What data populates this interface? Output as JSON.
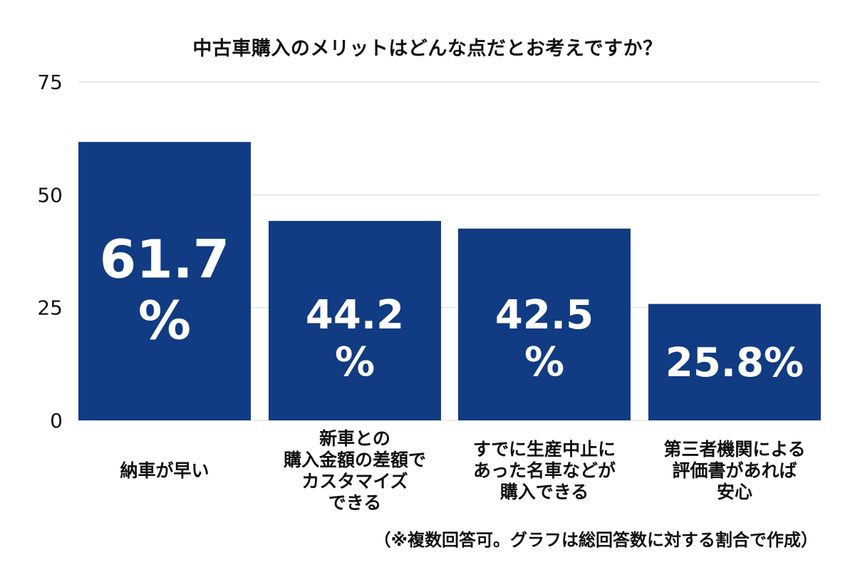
{
  "chart_data": {
    "type": "bar",
    "title": "中古車購入のメリットはどんな点だとお考えですか？",
    "categories": [
      "納車が早い",
      "新車との\n購入金額の差額で\nカスタマイズ\nできる",
      "すでに生産中止に\nあった名車などが\n購入できる",
      "第三者機関による\n評価書があれば\n安心"
    ],
    "values": [
      61.7,
      44.2,
      42.5,
      25.8
    ],
    "data_labels": [
      "61.7\n%",
      "44.2\n%",
      "42.5\n%",
      "25.8%"
    ],
    "yticks": [
      0,
      25,
      50,
      75
    ],
    "ylim": [
      0,
      75
    ],
    "grid": true,
    "xlabel": "",
    "ylabel": "",
    "bar_color": "#113b82",
    "grid_color": "#d9d9d9",
    "label_color": "#ffffff"
  },
  "footnote": "（※複数回答可。グラフは総回答数に対する割合で作成）"
}
